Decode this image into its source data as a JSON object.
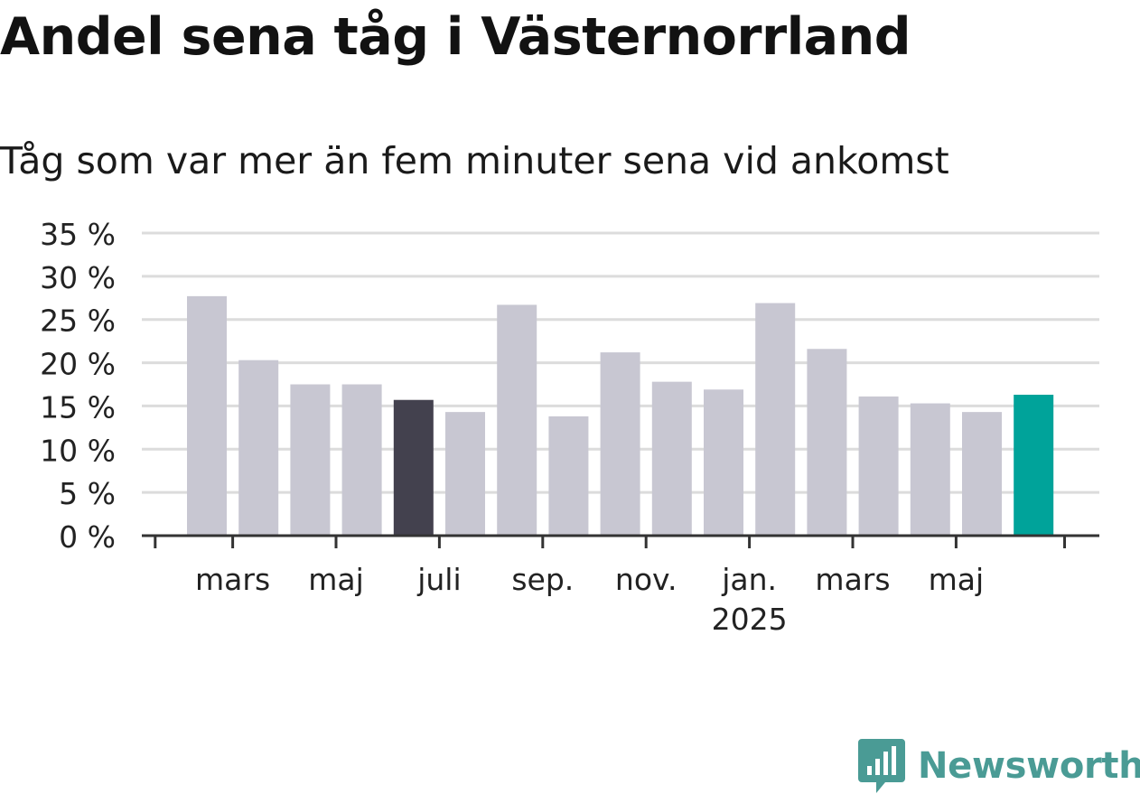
{
  "header": {
    "title": "Andel sena tåg i Västernorrland",
    "subtitle": "Tåg som var mer än fem minuter sena vid ankomst"
  },
  "brand": {
    "name": "Newsworthy",
    "icon": "chart-bubble-icon",
    "color": "#4a9b95"
  },
  "chart_data": {
    "type": "bar",
    "title": "Andel sena tåg i Västernorrland",
    "subtitle": "Tåg som var mer än fem minuter sena vid ankomst",
    "y_ticks": [
      "0 %",
      "5 %",
      "10 %",
      "15 %",
      "20 %",
      "25 %",
      "30 %",
      "35 %"
    ],
    "ylim": [
      0,
      35
    ],
    "grid": true,
    "x_tick_labels": [
      {
        "after_bar": 1,
        "label": "mars",
        "sub": ""
      },
      {
        "after_bar": 3,
        "label": "maj",
        "sub": ""
      },
      {
        "after_bar": 5,
        "label": "juli",
        "sub": ""
      },
      {
        "after_bar": 7,
        "label": "sep.",
        "sub": ""
      },
      {
        "after_bar": 9,
        "label": "nov.",
        "sub": ""
      },
      {
        "after_bar": 11,
        "label": "jan.",
        "sub": "2025"
      },
      {
        "after_bar": 13,
        "label": "mars",
        "sub": ""
      },
      {
        "after_bar": 15,
        "label": "maj",
        "sub": ""
      }
    ],
    "values": [
      27.7,
      20.3,
      17.5,
      17.5,
      15.7,
      14.3,
      26.7,
      13.8,
      21.2,
      17.8,
      16.9,
      26.9,
      21.6,
      16.1,
      15.3,
      14.3,
      16.3
    ],
    "colors": {
      "default": "#c8c7d2",
      "highlight_dark": "#43414e",
      "highlight_latest": "#00a39a",
      "grid": "#dcdcdc",
      "axis": "#333333"
    },
    "highlight_dark_index": 4,
    "highlight_latest_index": 16
  }
}
